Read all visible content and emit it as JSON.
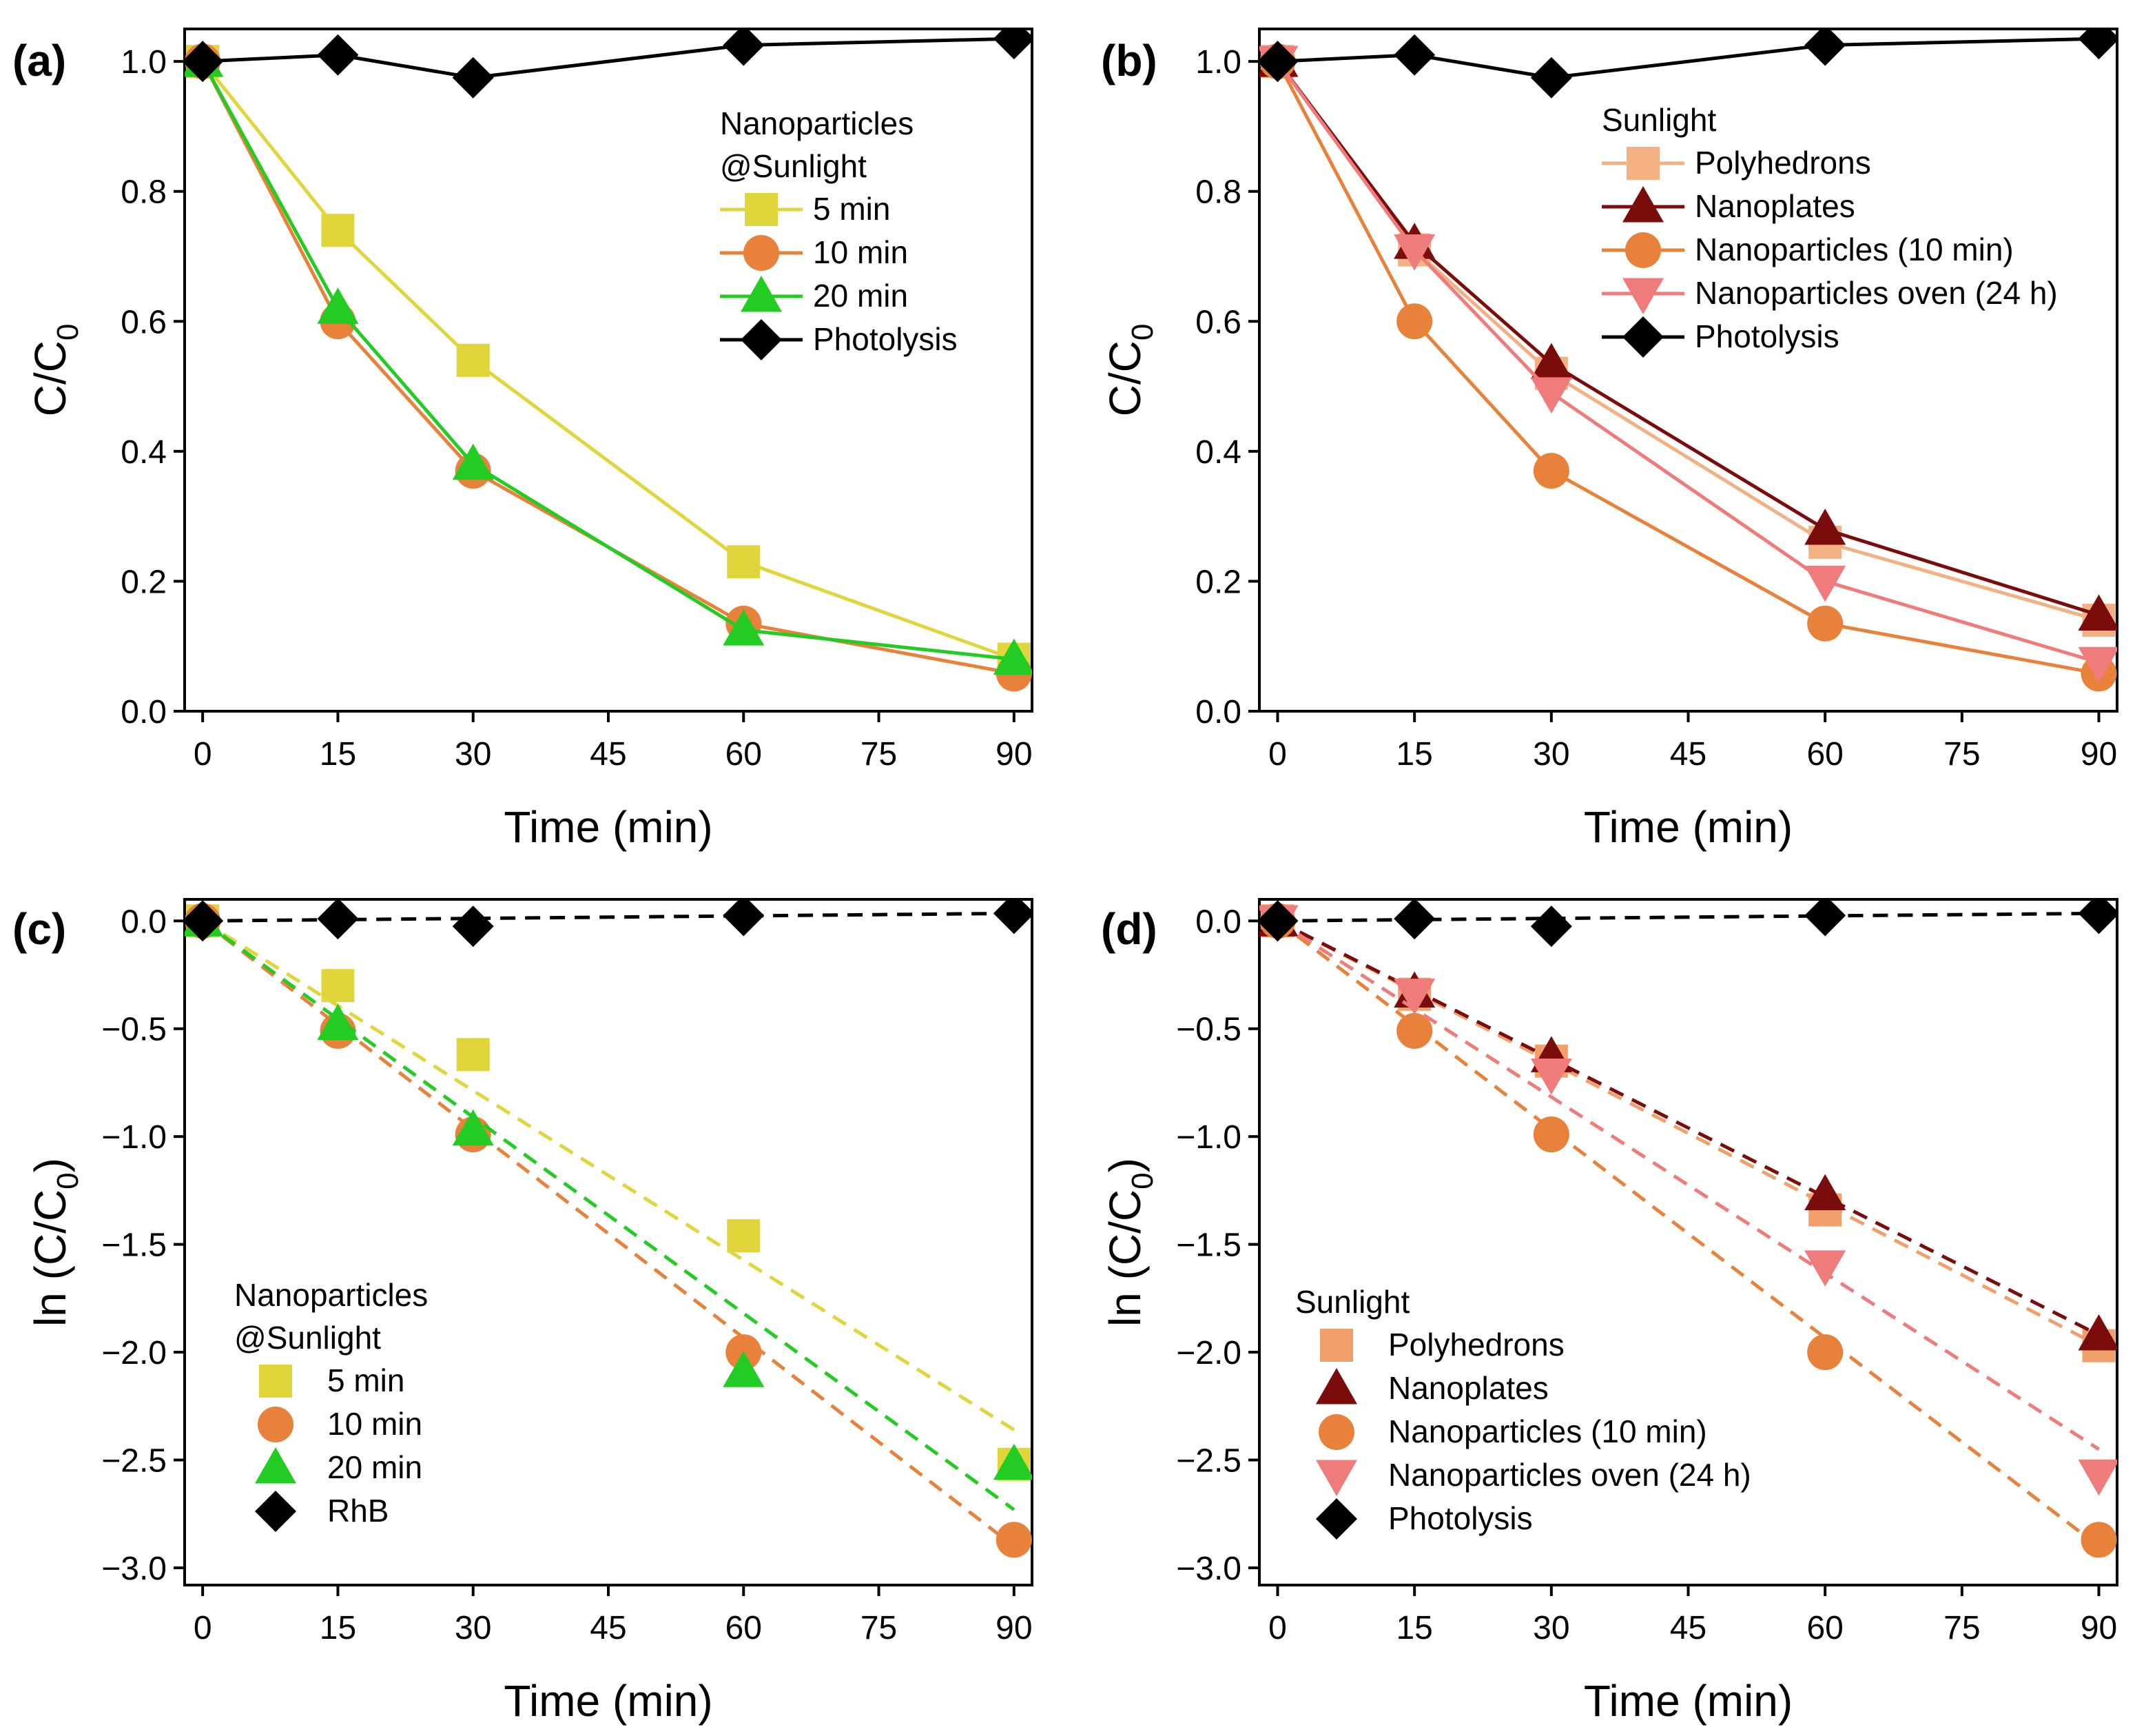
{
  "chart_data": [
    {
      "panel": "(a)",
      "type": "line",
      "xlabel": "Time (min)",
      "ylabel_main": "C/C",
      "ylabel_sub": "0",
      "xlim": [
        -2,
        92
      ],
      "ylim": [
        0,
        1.05
      ],
      "xticks": [
        0,
        15,
        30,
        45,
        60,
        75,
        90
      ],
      "xtick_labels": [
        "0",
        "15",
        "30",
        "45",
        "60",
        "75",
        "90"
      ],
      "yticks": [
        0,
        0.2,
        0.4,
        0.6,
        0.8,
        1.0
      ],
      "ytick_labels": [
        "0.0",
        "0.2",
        "0.4",
        "0.6",
        "0.8",
        "1.0"
      ],
      "legend_position": "top-right",
      "legend_title": [
        "Nanoparticles",
        "@Sunlight"
      ],
      "x": [
        0,
        15,
        30,
        60,
        90
      ],
      "series": [
        {
          "name": "5 min",
          "color": "#e0d53a",
          "marker": "square",
          "style": "solid",
          "values": [
            1.0,
            0.74,
            0.54,
            0.23,
            0.08
          ]
        },
        {
          "name": "10 min",
          "color": "#e8823a",
          "marker": "circle",
          "style": "solid",
          "values": [
            1.0,
            0.6,
            0.37,
            0.135,
            0.058
          ]
        },
        {
          "name": "20 min",
          "color": "#22cc22",
          "marker": "triangle-up",
          "style": "solid",
          "values": [
            1.0,
            0.62,
            0.38,
            0.125,
            0.08
          ]
        },
        {
          "name": "Photolysis",
          "color": "#000000",
          "marker": "diamond",
          "style": "solid",
          "values": [
            1.0,
            1.01,
            0.975,
            1.025,
            1.035
          ]
        }
      ]
    },
    {
      "panel": "(b)",
      "type": "line",
      "xlabel": "Time (min)",
      "ylabel_main": "C/C",
      "ylabel_sub": "0",
      "xlim": [
        -2,
        92
      ],
      "ylim": [
        0,
        1.05
      ],
      "xticks": [
        0,
        15,
        30,
        45,
        60,
        75,
        90
      ],
      "xtick_labels": [
        "0",
        "15",
        "30",
        "45",
        "60",
        "75",
        "90"
      ],
      "yticks": [
        0,
        0.2,
        0.4,
        0.6,
        0.8,
        1.0
      ],
      "ytick_labels": [
        "0.0",
        "0.2",
        "0.4",
        "0.6",
        "0.8",
        "1.0"
      ],
      "legend_position": "top-right",
      "legend_title": [
        "Sunlight"
      ],
      "x": [
        0,
        15,
        30,
        60,
        90
      ],
      "series": [
        {
          "name": "Polyhedrons",
          "color": "#f2b083",
          "marker": "square",
          "style": "solid",
          "values": [
            1.0,
            0.71,
            0.52,
            0.26,
            0.14
          ]
        },
        {
          "name": "Nanoplates",
          "color": "#7a0c0c",
          "marker": "triangle-up",
          "style": "solid",
          "values": [
            1.0,
            0.72,
            0.535,
            0.28,
            0.148
          ]
        },
        {
          "name": "Nanoparticles (10 min)",
          "color": "#e8823a",
          "marker": "circle",
          "style": "solid",
          "values": [
            1.0,
            0.6,
            0.37,
            0.135,
            0.058
          ]
        },
        {
          "name": "Nanoparticles oven (24 h)",
          "color": "#ef7b7b",
          "marker": "triangle-down",
          "style": "solid",
          "values": [
            1.0,
            0.71,
            0.49,
            0.2,
            0.075
          ]
        },
        {
          "name": "Photolysis",
          "color": "#000000",
          "marker": "diamond",
          "style": "solid",
          "values": [
            1.0,
            1.01,
            0.975,
            1.025,
            1.035
          ]
        }
      ]
    },
    {
      "panel": "(c)",
      "type": "scatter",
      "xlabel": "Time (min)",
      "ylabel_main": "ln (C/C",
      "ylabel_sub": "0",
      "ylabel_tail": ")",
      "xlim": [
        -2,
        92
      ],
      "ylim": [
        -3.08,
        0.1
      ],
      "xticks": [
        0,
        15,
        30,
        45,
        60,
        75,
        90
      ],
      "xtick_labels": [
        "0",
        "15",
        "30",
        "45",
        "60",
        "75",
        "90"
      ],
      "yticks": [
        0,
        -0.5,
        -1.0,
        -1.5,
        -2.0,
        -2.5,
        -3.0
      ],
      "ytick_labels": [
        "0.0",
        "−0.5",
        "−1.0",
        "−1.5",
        "−2.0",
        "−2.5",
        "−3.0"
      ],
      "legend_position": "bottom-left",
      "legend_title": [
        "Nanoparticles",
        "@Sunlight"
      ],
      "x": [
        0,
        15,
        30,
        60,
        90
      ],
      "series": [
        {
          "name": "5 min",
          "color": "#e0d53a",
          "marker": "square",
          "style": "points",
          "values": [
            0,
            -0.3,
            -0.62,
            -1.46,
            -2.52
          ],
          "fit_end": -2.36
        },
        {
          "name": "10 min",
          "color": "#e8823a",
          "marker": "circle",
          "style": "points",
          "values": [
            0,
            -0.51,
            -0.99,
            -2.0,
            -2.87
          ],
          "fit_end": -2.9
        },
        {
          "name": "20 min",
          "color": "#22cc22",
          "marker": "triangle-up",
          "style": "points",
          "values": [
            0,
            -0.48,
            -0.97,
            -2.09,
            -2.52
          ],
          "fit_end": -2.73
        },
        {
          "name": "RhB",
          "color": "#000000",
          "marker": "diamond",
          "style": "points",
          "values": [
            0,
            0.01,
            -0.025,
            0.025,
            0.035
          ],
          "fit_end": 0.035
        }
      ]
    },
    {
      "panel": "(d)",
      "type": "scatter",
      "xlabel": "Time (min)",
      "ylabel_main": "ln (C/C",
      "ylabel_sub": "0",
      "ylabel_tail": ")",
      "xlim": [
        -2,
        92
      ],
      "ylim": [
        -3.08,
        0.1
      ],
      "xticks": [
        0,
        15,
        30,
        45,
        60,
        75,
        90
      ],
      "xtick_labels": [
        "0",
        "15",
        "30",
        "45",
        "60",
        "75",
        "90"
      ],
      "yticks": [
        0,
        -0.5,
        -1.0,
        -1.5,
        -2.0,
        -2.5,
        -3.0
      ],
      "ytick_labels": [
        "0.0",
        "−0.5",
        "−1.0",
        "−1.5",
        "−2.0",
        "−2.5",
        "−3.0"
      ],
      "legend_position": "bottom-left",
      "legend_title": [
        "Sunlight"
      ],
      "x": [
        0,
        15,
        30,
        60,
        90
      ],
      "series": [
        {
          "name": "Polyhedrons",
          "color": "#f2a06b",
          "marker": "square",
          "style": "points",
          "values": [
            0,
            -0.34,
            -0.65,
            -1.34,
            -1.97
          ],
          "fit_end": -1.97
        },
        {
          "name": "Nanoplates",
          "color": "#7a0c0c",
          "marker": "triangle-up",
          "style": "points",
          "values": [
            0,
            -0.33,
            -0.63,
            -1.27,
            -1.92
          ],
          "fit_end": -1.92
        },
        {
          "name": "Nanoparticles (10 min)",
          "color": "#e8823a",
          "marker": "circle",
          "style": "points",
          "values": [
            0,
            -0.51,
            -0.99,
            -2.0,
            -2.87
          ],
          "fit_end": -2.9
        },
        {
          "name": "Nanoparticles oven (24 h)",
          "color": "#ef7b7b",
          "marker": "triangle-down",
          "style": "points",
          "values": [
            0,
            -0.34,
            -0.71,
            -1.6,
            -2.57
          ],
          "fit_end": -2.45
        },
        {
          "name": "Photolysis",
          "color": "#000000",
          "marker": "diamond",
          "style": "points",
          "values": [
            0,
            0.01,
            -0.025,
            0.025,
            0.035
          ],
          "fit_end": 0.035
        }
      ]
    }
  ]
}
